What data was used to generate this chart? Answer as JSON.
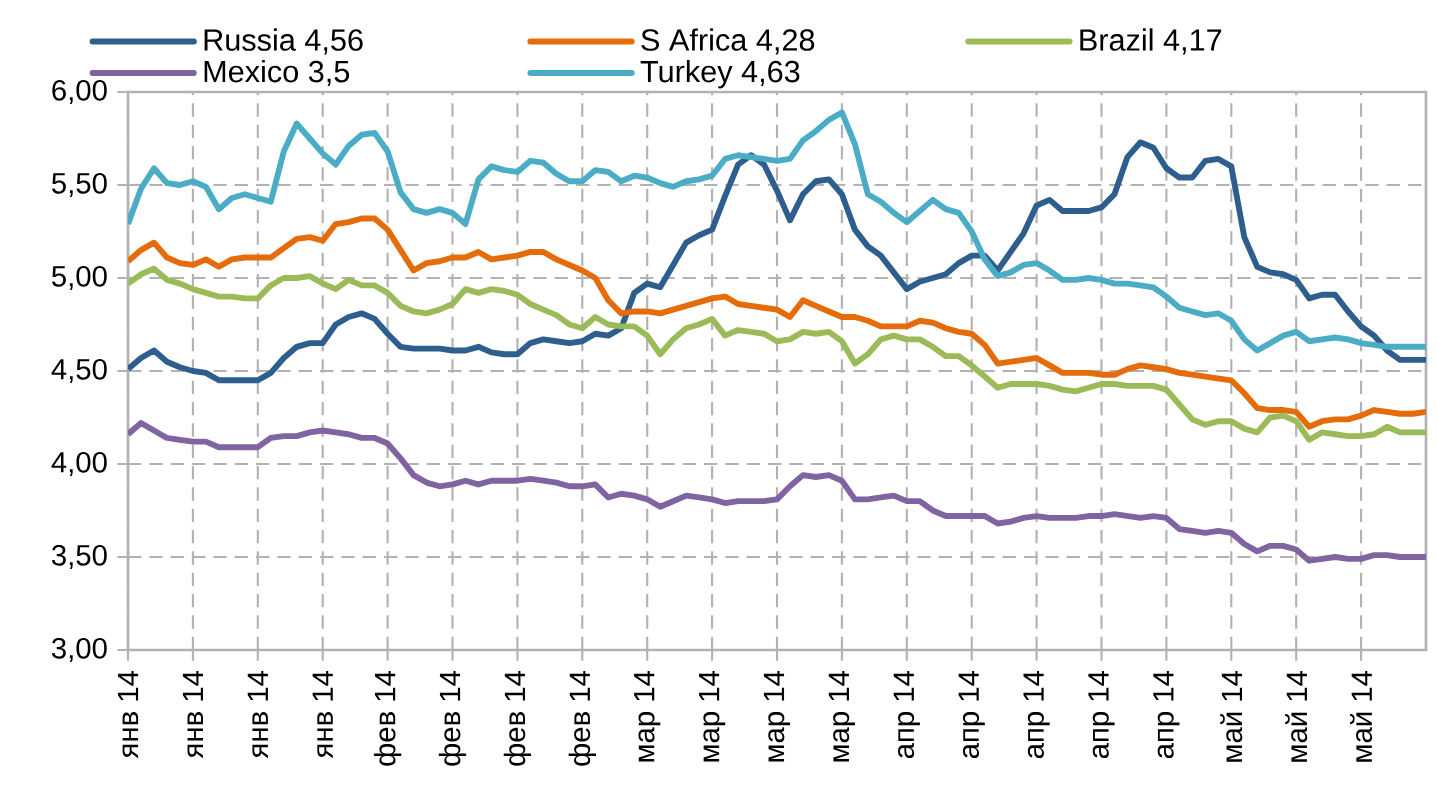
{
  "chart_data": {
    "type": "line",
    "categories": [
      "янв 14",
      null,
      null,
      null,
      null,
      "янв 14",
      null,
      null,
      null,
      null,
      "янв 14",
      null,
      null,
      null,
      null,
      "янв 14",
      null,
      null,
      null,
      null,
      "фев 14",
      null,
      null,
      null,
      null,
      "фев 14",
      null,
      null,
      null,
      null,
      "фев 14",
      null,
      null,
      null,
      null,
      "фев 14",
      null,
      null,
      null,
      null,
      "мар 14",
      null,
      null,
      null,
      null,
      "мар 14",
      null,
      null,
      null,
      null,
      "мар 14",
      null,
      null,
      null,
      null,
      "мар 14",
      null,
      null,
      null,
      null,
      "апр 14",
      null,
      null,
      null,
      null,
      "апр 14",
      null,
      null,
      null,
      null,
      "апр 14",
      null,
      null,
      null,
      null,
      "апр 14",
      null,
      null,
      null,
      null,
      "апр 14",
      null,
      null,
      null,
      null,
      "май 14",
      null,
      null,
      null,
      null,
      "май 14",
      null,
      null,
      null,
      null,
      "май 14",
      null,
      null,
      null,
      null,
      null
    ],
    "ylim": [
      3,
      6
    ],
    "yticks": [
      {
        "value": 3,
        "label": "3,00"
      },
      {
        "value": 3.5,
        "label": "3,50"
      },
      {
        "value": 4,
        "label": "4,00"
      },
      {
        "value": 4.5,
        "label": "4,50"
      },
      {
        "value": 5,
        "label": "5,00"
      },
      {
        "value": 5.5,
        "label": "5,50"
      },
      {
        "value": 6,
        "label": "6,00"
      }
    ],
    "grid": true,
    "legend": "top",
    "series": [
      {
        "name": "Russia 4,56",
        "color": "#2e5e8e",
        "values": [
          4.51,
          4.57,
          4.61,
          4.55,
          4.52,
          4.5,
          4.49,
          4.45,
          4.45,
          4.45,
          4.45,
          4.49,
          4.57,
          4.63,
          4.65,
          4.65,
          4.75,
          4.79,
          4.81,
          4.78,
          4.7,
          4.63,
          4.62,
          4.62,
          4.62,
          4.61,
          4.61,
          4.63,
          4.6,
          4.59,
          4.59,
          4.65,
          4.67,
          4.66,
          4.65,
          4.66,
          4.7,
          4.69,
          4.73,
          4.92,
          4.97,
          4.95,
          5.07,
          5.19,
          5.23,
          5.26,
          5.44,
          5.61,
          5.66,
          5.61,
          5.47,
          5.31,
          5.45,
          5.52,
          5.53,
          5.45,
          5.26,
          5.17,
          5.12,
          5.03,
          4.94,
          4.98,
          5.0,
          5.02,
          5.08,
          5.12,
          5.12,
          5.04,
          5.14,
          5.24,
          5.39,
          5.42,
          5.36,
          5.36,
          5.36,
          5.38,
          5.45,
          5.65,
          5.73,
          5.7,
          5.59,
          5.54,
          5.54,
          5.63,
          5.64,
          5.6,
          5.22,
          5.06,
          5.03,
          5.02,
          4.99,
          4.89,
          4.91,
          4.91,
          4.82,
          4.74,
          4.69,
          4.61,
          4.56,
          4.56,
          4.56
        ]
      },
      {
        "name": "S Africa 4,28",
        "color": "#e46c0a",
        "values": [
          5.09,
          5.15,
          5.19,
          5.11,
          5.08,
          5.07,
          5.1,
          5.06,
          5.1,
          5.11,
          5.11,
          5.11,
          5.16,
          5.21,
          5.22,
          5.2,
          5.29,
          5.3,
          5.32,
          5.32,
          5.26,
          5.15,
          5.04,
          5.08,
          5.09,
          5.11,
          5.11,
          5.14,
          5.1,
          5.11,
          5.12,
          5.14,
          5.14,
          5.1,
          5.07,
          5.04,
          5.0,
          4.88,
          4.81,
          4.82,
          4.82,
          4.81,
          4.83,
          4.85,
          4.87,
          4.89,
          4.9,
          4.86,
          4.85,
          4.84,
          4.83,
          4.79,
          4.88,
          4.85,
          4.82,
          4.79,
          4.79,
          4.77,
          4.74,
          4.74,
          4.74,
          4.77,
          4.76,
          4.73,
          4.71,
          4.7,
          4.64,
          4.54,
          4.55,
          4.56,
          4.57,
          4.53,
          4.49,
          4.49,
          4.49,
          4.48,
          4.48,
          4.51,
          4.53,
          4.52,
          4.51,
          4.49,
          4.48,
          4.47,
          4.46,
          4.45,
          4.38,
          4.3,
          4.29,
          4.29,
          4.28,
          4.2,
          4.23,
          4.24,
          4.24,
          4.26,
          4.29,
          4.28,
          4.27,
          4.27,
          4.28
        ]
      },
      {
        "name": "Brazil 4,17",
        "color": "#9bbb59",
        "values": [
          4.97,
          5.02,
          5.05,
          4.99,
          4.97,
          4.94,
          4.92,
          4.9,
          4.9,
          4.89,
          4.89,
          4.96,
          5.0,
          5.0,
          5.01,
          4.97,
          4.94,
          4.99,
          4.96,
          4.96,
          4.92,
          4.85,
          4.82,
          4.81,
          4.83,
          4.86,
          4.94,
          4.92,
          4.94,
          4.93,
          4.91,
          4.86,
          4.83,
          4.8,
          4.75,
          4.73,
          4.79,
          4.75,
          4.74,
          4.74,
          4.69,
          4.59,
          4.67,
          4.73,
          4.75,
          4.78,
          4.69,
          4.72,
          4.71,
          4.7,
          4.66,
          4.67,
          4.71,
          4.7,
          4.71,
          4.66,
          4.54,
          4.59,
          4.67,
          4.69,
          4.67,
          4.67,
          4.63,
          4.58,
          4.58,
          4.53,
          4.47,
          4.41,
          4.43,
          4.43,
          4.43,
          4.42,
          4.4,
          4.39,
          4.41,
          4.43,
          4.43,
          4.42,
          4.42,
          4.42,
          4.4,
          4.32,
          4.24,
          4.21,
          4.23,
          4.23,
          4.19,
          4.17,
          4.25,
          4.26,
          4.23,
          4.13,
          4.17,
          4.16,
          4.15,
          4.15,
          4.16,
          4.2,
          4.17,
          4.17,
          4.17
        ]
      },
      {
        "name": "Mexico 3,5",
        "color": "#8064a2",
        "values": [
          4.16,
          4.22,
          4.18,
          4.14,
          4.13,
          4.12,
          4.12,
          4.09,
          4.09,
          4.09,
          4.09,
          4.14,
          4.15,
          4.15,
          4.17,
          4.18,
          4.17,
          4.16,
          4.14,
          4.14,
          4.11,
          4.03,
          3.94,
          3.9,
          3.88,
          3.89,
          3.91,
          3.89,
          3.91,
          3.91,
          3.91,
          3.92,
          3.91,
          3.9,
          3.88,
          3.88,
          3.89,
          3.82,
          3.84,
          3.83,
          3.81,
          3.77,
          3.8,
          3.83,
          3.82,
          3.81,
          3.79,
          3.8,
          3.8,
          3.8,
          3.81,
          3.88,
          3.94,
          3.93,
          3.94,
          3.91,
          3.81,
          3.81,
          3.82,
          3.83,
          3.8,
          3.8,
          3.75,
          3.72,
          3.72,
          3.72,
          3.72,
          3.68,
          3.69,
          3.71,
          3.72,
          3.71,
          3.71,
          3.71,
          3.72,
          3.72,
          3.73,
          3.72,
          3.71,
          3.72,
          3.71,
          3.65,
          3.64,
          3.63,
          3.64,
          3.63,
          3.57,
          3.53,
          3.56,
          3.56,
          3.54,
          3.48,
          3.49,
          3.5,
          3.49,
          3.49,
          3.51,
          3.51,
          3.5,
          3.5,
          3.5
        ]
      },
      {
        "name": "Turkey 4,63",
        "color": "#4bacc6",
        "values": [
          5.29,
          5.48,
          5.59,
          5.51,
          5.5,
          5.52,
          5.49,
          5.37,
          5.43,
          5.45,
          5.43,
          5.41,
          5.68,
          5.83,
          5.75,
          5.67,
          5.61,
          5.71,
          5.77,
          5.78,
          5.68,
          5.46,
          5.37,
          5.35,
          5.37,
          5.35,
          5.29,
          5.53,
          5.6,
          5.58,
          5.57,
          5.63,
          5.62,
          5.56,
          5.52,
          5.52,
          5.58,
          5.57,
          5.52,
          5.55,
          5.54,
          5.51,
          5.49,
          5.52,
          5.53,
          5.55,
          5.64,
          5.66,
          5.65,
          5.64,
          5.63,
          5.64,
          5.74,
          5.79,
          5.85,
          5.89,
          5.72,
          5.45,
          5.41,
          5.35,
          5.3,
          5.36,
          5.42,
          5.37,
          5.35,
          5.25,
          5.1,
          5.01,
          5.03,
          5.07,
          5.08,
          5.04,
          4.99,
          4.99,
          5.0,
          4.99,
          4.97,
          4.97,
          4.96,
          4.95,
          4.9,
          4.84,
          4.82,
          4.8,
          4.81,
          4.77,
          4.67,
          4.61,
          4.65,
          4.69,
          4.71,
          4.66,
          4.67,
          4.68,
          4.67,
          4.65,
          4.64,
          4.63,
          4.63,
          4.63,
          4.63
        ]
      }
    ]
  }
}
